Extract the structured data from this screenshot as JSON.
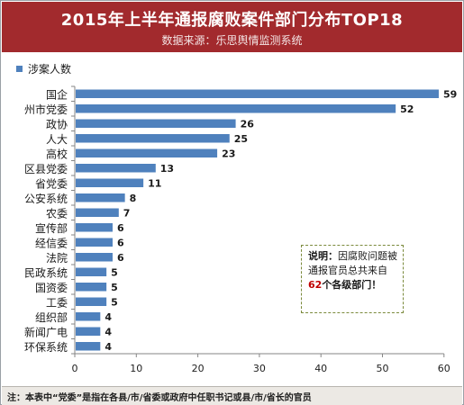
{
  "header": {
    "title": "2015年上半年通报腐败案件部门分布TOP18",
    "subtitle": "数据来源：乐思舆情监测系统"
  },
  "note": {
    "label": "说明：",
    "text_before": "因腐败问题被通报官员总共来自",
    "count": "62",
    "text_after": "个各级部门！"
  },
  "footer": {
    "text": "注：本表中“党委”是指在各县/市/省委或政府中任职书记或县/市/省长的官员"
  },
  "colors": {
    "bar": "#4f81bd",
    "header_bg": "#a22a2d"
  },
  "chart_data": {
    "type": "bar",
    "orientation": "horizontal",
    "categories": [
      "国企",
      "州市党委",
      "政协",
      "人大",
      "高校",
      "区县党委",
      "省党委",
      "公安系统",
      "农委",
      "宣传部",
      "经信委",
      "法院",
      "民政系统",
      "国资委",
      "工委",
      "组织部",
      "新闻广电",
      "环保系统"
    ],
    "series": [
      {
        "name": "涉案人数",
        "values": [
          59,
          52,
          26,
          25,
          23,
          13,
          11,
          8,
          7,
          6,
          6,
          6,
          5,
          5,
          5,
          4,
          4,
          4
        ]
      }
    ],
    "xlim": [
      0,
      60
    ],
    "xticks": [
      "0",
      "10",
      "20",
      "30",
      "40",
      "50",
      "60"
    ],
    "grid": false,
    "legend": "top-left"
  }
}
